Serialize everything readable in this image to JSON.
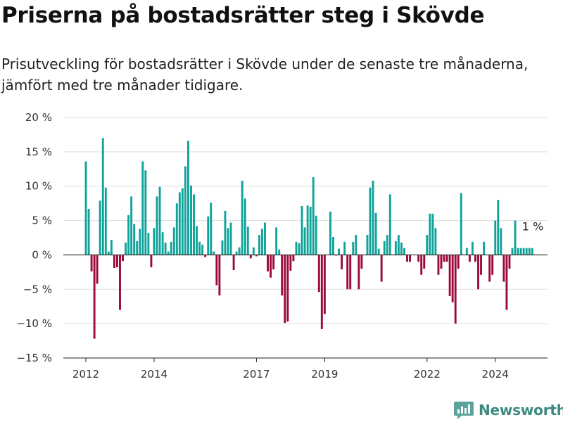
{
  "header": {
    "title": "Priserna på bostadsrätter steg i Skövde",
    "subtitle": "Prisutveckling för bostadsrätter i Skövde under de senaste tre månaderna, jämfört med tre månader tidigare."
  },
  "brand": {
    "name": "Newsworthy",
    "icon": "newsworthy-logo-icon"
  },
  "colors": {
    "positive": "#0fa39a",
    "negative": "#9b0a3c",
    "grid": "#dddddd",
    "axis": "#222222"
  },
  "chart_data": {
    "type": "bar",
    "title": "Priserna på bostadsrätter steg i Skövde",
    "xlabel": "",
    "ylabel": "",
    "ylim": [
      -15,
      20
    ],
    "yticks": [
      20,
      15,
      10,
      5,
      0,
      -5,
      -10,
      -15
    ],
    "ytick_labels": [
      "20 %",
      "15 %",
      "10 %",
      "5 %",
      "0 %",
      "−5 %",
      "−10 %",
      "−15 %"
    ],
    "xticks": [
      2012,
      2014,
      2017,
      2019,
      2022,
      2024
    ],
    "x_start": "2012-01",
    "x_end": "2025-02",
    "grid": true,
    "annotation": {
      "text": "1 %",
      "month": "2025-02",
      "value": 1
    },
    "series": [
      {
        "months": [
          "2012-01",
          "2012-02",
          "2012-03",
          "2012-04",
          "2012-05",
          "2012-06",
          "2012-07",
          "2012-08",
          "2012-09",
          "2012-10",
          "2012-11",
          "2012-12",
          "2013-01",
          "2013-02",
          "2013-03",
          "2013-04",
          "2013-05",
          "2013-06",
          "2013-07",
          "2013-08",
          "2013-09",
          "2013-10",
          "2013-11",
          "2013-12",
          "2014-01",
          "2014-02",
          "2014-03",
          "2014-04",
          "2014-05",
          "2014-06",
          "2014-07",
          "2014-08",
          "2014-09",
          "2014-10",
          "2014-11",
          "2014-12",
          "2015-01",
          "2015-02",
          "2015-03",
          "2015-04",
          "2015-05",
          "2015-06",
          "2015-07",
          "2015-08",
          "2015-09",
          "2015-10",
          "2015-11",
          "2015-12",
          "2016-01",
          "2016-02",
          "2016-03",
          "2016-04",
          "2016-05",
          "2016-06",
          "2016-07",
          "2016-08",
          "2016-09",
          "2016-10",
          "2016-11",
          "2016-12",
          "2017-01",
          "2017-02",
          "2017-03",
          "2017-04",
          "2017-05",
          "2017-06",
          "2017-07",
          "2017-08",
          "2017-09",
          "2017-10",
          "2017-11",
          "2017-12",
          "2018-01",
          "2018-02",
          "2018-03",
          "2018-04",
          "2018-05",
          "2018-06",
          "2018-07",
          "2018-08",
          "2018-09",
          "2018-10",
          "2018-11",
          "2018-12",
          "2019-01",
          "2019-02",
          "2019-03",
          "2019-04",
          "2019-05",
          "2019-06",
          "2019-07",
          "2019-08",
          "2019-09",
          "2019-10",
          "2019-11",
          "2019-12",
          "2020-01",
          "2020-02",
          "2020-03",
          "2020-04",
          "2020-05",
          "2020-06",
          "2020-07",
          "2020-08",
          "2020-09",
          "2020-10",
          "2020-11",
          "2020-12",
          "2021-01",
          "2021-02",
          "2021-03",
          "2021-04",
          "2021-05",
          "2021-06",
          "2021-07",
          "2021-08",
          "2021-09",
          "2021-10",
          "2021-11",
          "2021-12",
          "2022-01",
          "2022-02",
          "2022-03",
          "2022-04",
          "2022-05",
          "2022-06",
          "2022-07",
          "2022-08",
          "2022-09",
          "2022-10",
          "2022-11",
          "2022-12",
          "2023-01",
          "2023-02",
          "2023-03",
          "2023-04",
          "2023-05",
          "2023-06",
          "2023-07",
          "2023-08",
          "2023-09",
          "2023-10",
          "2023-11",
          "2023-12",
          "2024-01",
          "2024-02",
          "2024-03",
          "2024-04",
          "2024-05",
          "2024-06",
          "2024-07",
          "2024-08",
          "2024-09",
          "2024-10",
          "2024-11",
          "2024-12",
          "2025-01",
          "2025-02"
        ],
        "values": [
          13.6,
          6.7,
          -2.4,
          -12.2,
          -4.2,
          7.9,
          17.0,
          9.8,
          0.5,
          2.2,
          -1.9,
          -1.8,
          -8.0,
          -0.9,
          1.8,
          5.8,
          8.5,
          4.5,
          2.0,
          3.8,
          13.6,
          12.3,
          3.2,
          -1.8,
          3.9,
          8.5,
          9.9,
          3.3,
          1.8,
          0.5,
          1.9,
          4.0,
          7.5,
          9.1,
          9.7,
          12.9,
          16.6,
          10.1,
          8.8,
          4.2,
          1.9,
          1.5,
          -0.3,
          5.6,
          7.6,
          0.5,
          -4.4,
          -5.9,
          2.1,
          6.4,
          3.9,
          4.7,
          -2.2,
          0.5,
          1.1,
          10.8,
          8.2,
          4.1,
          -0.5,
          1.1,
          -0.2,
          2.9,
          3.8,
          4.7,
          -2.4,
          -3.3,
          -2.1,
          4.0,
          0.8,
          -5.9,
          -9.9,
          -9.7,
          -2.3,
          -0.9,
          1.9,
          1.7,
          7.1,
          4.0,
          7.2,
          7.0,
          11.3,
          5.7,
          -5.4,
          -10.8,
          -8.6,
          0.0,
          6.3,
          2.6,
          -0.1,
          0.9,
          -2.1,
          1.9,
          -5.0,
          -5.0,
          1.9,
          2.9,
          -5.0,
          -2.0,
          0.0,
          2.9,
          9.8,
          10.8,
          6.1,
          0.9,
          -3.9,
          2.0,
          2.9,
          8.8,
          0.0,
          2.0,
          2.9,
          1.8,
          1.0,
          -1.0,
          -1.0,
          0.0,
          0.0,
          -1.0,
          -2.9,
          -2.0,
          2.9,
          6.0,
          6.0,
          3.9,
          -2.9,
          -2.0,
          -1.0,
          -1.0,
          -6.0,
          -6.9,
          -10.0,
          -2.0,
          9.0,
          0.0,
          1.0,
          -1.0,
          1.9,
          -1.0,
          -5.0,
          -2.9,
          1.9,
          0.0,
          -3.9,
          -2.9,
          5.0,
          8.0,
          3.9,
          -3.9,
          -8.0,
          -2.0,
          1.0,
          5.0,
          1.0,
          1.0,
          1.0,
          1.0,
          1.0,
          1.0
        ]
      }
    ]
  }
}
